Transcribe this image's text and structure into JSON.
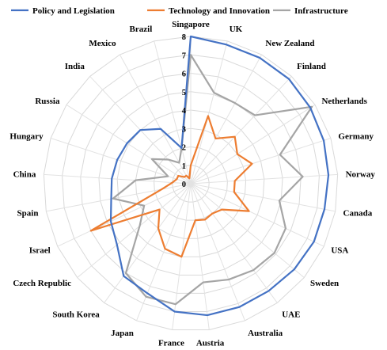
{
  "chart_data": {
    "type": "radar",
    "title": "",
    "categories": [
      "Singapore",
      "UK",
      "New Zealand",
      "Finland",
      "Netherlands",
      "Germany",
      "Norway",
      "Canada",
      "USA",
      "Sweden",
      "UAE",
      "Australia",
      "Austria",
      "France",
      "Japan",
      "South Korea",
      "Czech Republic",
      "Israel",
      "Spain",
      "China",
      "Hungary",
      "Russia",
      "India",
      "Mexico",
      "Brazil"
    ],
    "rlim": [
      0,
      8
    ],
    "ticks": [
      "0",
      "1",
      "2",
      "3",
      "4",
      "5",
      "6",
      "7",
      "8"
    ],
    "grid": true,
    "legend_position": "top",
    "series": [
      {
        "name": "Policy and Legislation",
        "color": "#4472C4",
        "values": [
          8,
          7.8,
          7.8,
          7.8,
          7.7,
          7.6,
          7.5,
          7.4,
          7.4,
          7.3,
          7.2,
          7.2,
          7.2,
          7.0,
          6.4,
          6.2,
          5.2,
          4.8,
          4.4,
          4.3,
          4.2,
          4.1,
          4.0,
          3.4,
          2.0
        ]
      },
      {
        "name": "Technology and Innovation",
        "color": "#ED7D31",
        "values": [
          1.0,
          3.8,
          2.8,
          3.5,
          3.0,
          3.5,
          2.4,
          2.4,
          3.5,
          2.2,
          2.0,
          2.1,
          2.0,
          4.0,
          3.8,
          3.0,
          2.2,
          6.0,
          1.6,
          1.0,
          0.8,
          0.8,
          0.5,
          0.5,
          0.3
        ]
      },
      {
        "name": "Infrastructure",
        "color": "#A5A5A5",
        "values": [
          7.0,
          5.1,
          5.0,
          5.1,
          7.8,
          5.1,
          6.1,
          4.9,
          5.7,
          5.9,
          5.8,
          5.6,
          5.4,
          6.6,
          6.6,
          6.0,
          3.6,
          2.8,
          4.3,
          3.0,
          1.3,
          2.5,
          1.8,
          1.3,
          2.0
        ]
      }
    ]
  }
}
